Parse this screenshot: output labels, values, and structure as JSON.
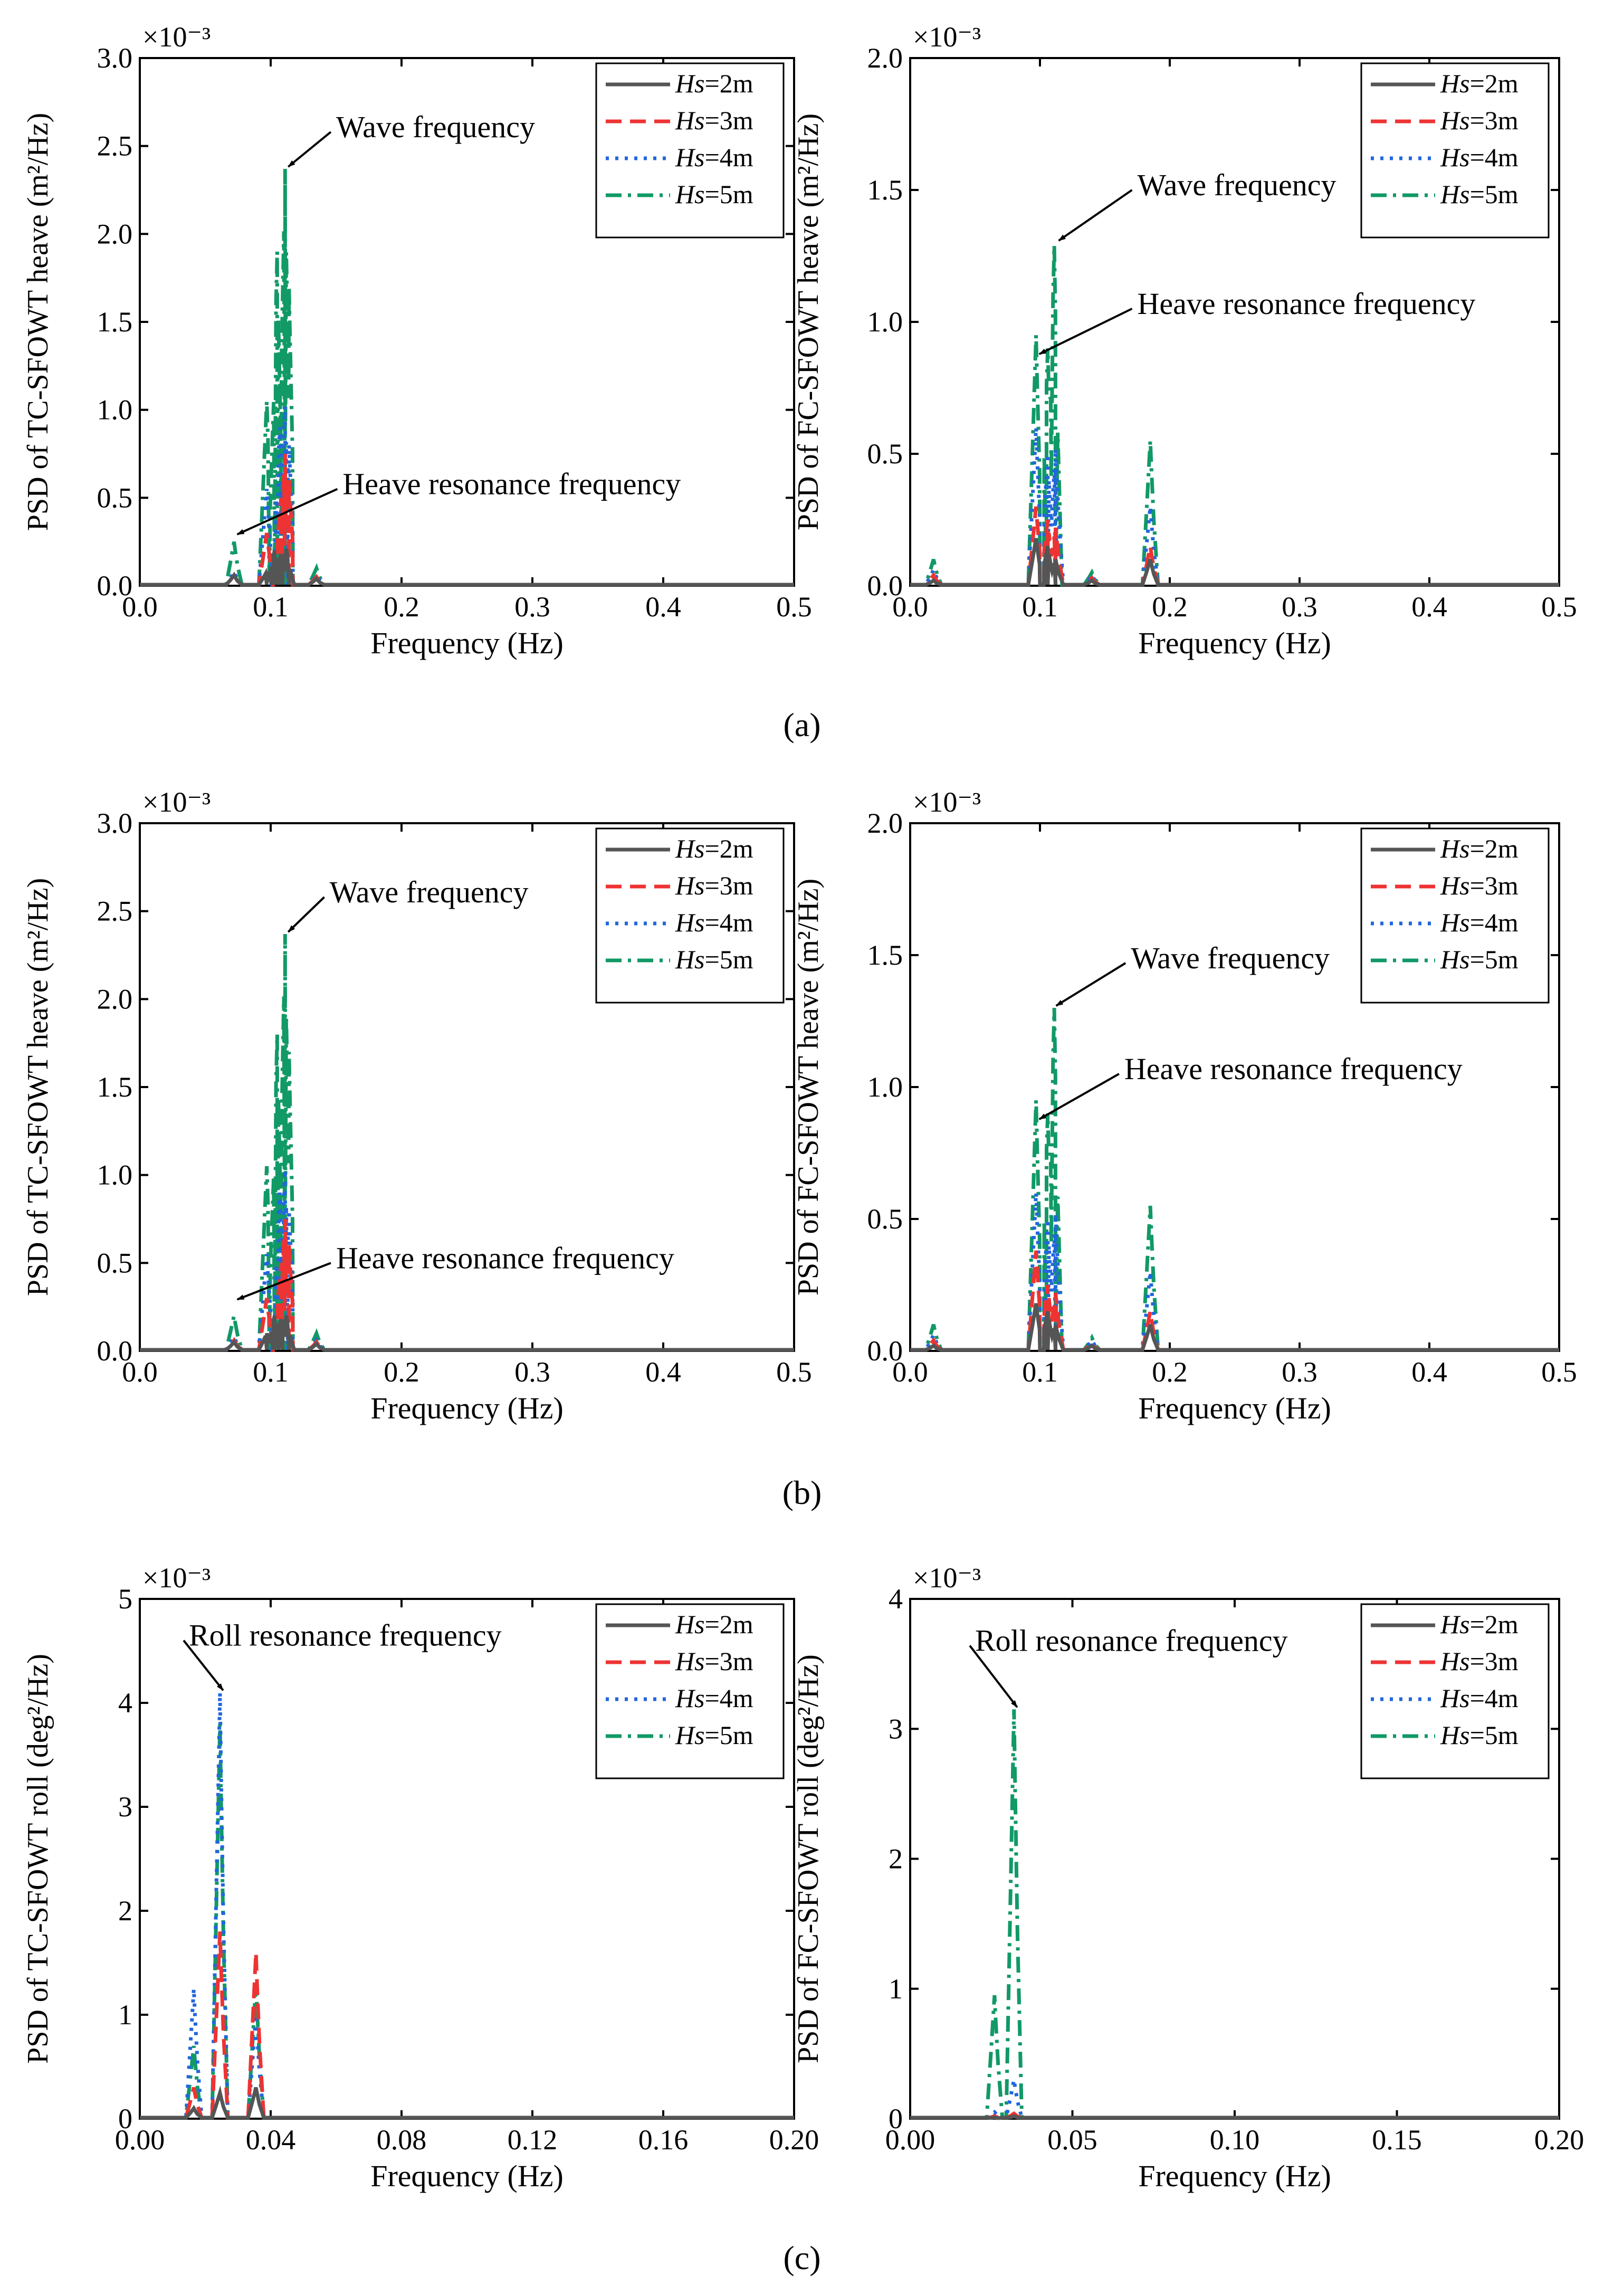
{
  "figure": {
    "captions": [
      "(a)",
      "(b)",
      "(c)"
    ],
    "legend_hs_symbol": "Hs"
  },
  "series_styles": [
    {
      "name": "Hs=2m",
      "hs": "Hs",
      "suffix": "=2m",
      "color": "#555555",
      "dash": "solid"
    },
    {
      "name": "Hs=3m",
      "hs": "Hs",
      "suffix": "=3m",
      "color": "#ee3333",
      "dash": "dashed"
    },
    {
      "name": "Hs=4m",
      "hs": "Hs",
      "suffix": "=4m",
      "color": "#2266dd",
      "dash": "dotted"
    },
    {
      "name": "Hs=5m",
      "hs": "Hs",
      "suffix": "=5m",
      "color": "#119966",
      "dash": "dashdot"
    }
  ],
  "chart_data": [
    {
      "id": "a-left",
      "type": "line",
      "row": 0,
      "col": 0,
      "ylabel": "PSD of  TC-SFOWT heave (m²/Hz)",
      "xlabel": "Frequency (Hz)",
      "xlim": [
        0,
        0.5
      ],
      "ylim": [
        0,
        3.0
      ],
      "yscale_label": "×10⁻³",
      "xticks": [
        "0.0",
        "0.1",
        "0.2",
        "0.3",
        "0.4",
        "0.5"
      ],
      "yticks": [
        "0.0",
        "0.5",
        "1.0",
        "1.5",
        "2.0",
        "2.5",
        "3.0"
      ],
      "peaks": [
        [
          [
            0.072,
            0.06
          ],
          [
            0.097,
            0.08
          ],
          [
            0.103,
            0.2
          ],
          [
            0.108,
            0.18
          ],
          [
            0.112,
            0.21
          ],
          [
            0.135,
            0.04
          ]
        ],
        [
          [
            0.072,
            0.06
          ],
          [
            0.097,
            0.3
          ],
          [
            0.108,
            0.5
          ],
          [
            0.111,
            0.75
          ],
          [
            0.114,
            0.6
          ],
          [
            0.135,
            0.05
          ]
        ],
        [
          [
            0.072,
            0.08
          ],
          [
            0.097,
            0.55
          ],
          [
            0.107,
            0.9
          ],
          [
            0.111,
            1.02
          ],
          [
            0.114,
            0.8
          ],
          [
            0.135,
            0.06
          ]
        ],
        [
          [
            0.072,
            0.25
          ],
          [
            0.097,
            1.05
          ],
          [
            0.105,
            1.9
          ],
          [
            0.111,
            2.37
          ],
          [
            0.114,
            1.7
          ],
          [
            0.135,
            0.1
          ]
        ]
      ],
      "annotations": [
        {
          "text": "Wave frequency",
          "tx": 0.15,
          "ty": 2.55,
          "ax": 0.111,
          "ay": 2.37
        },
        {
          "text": "Heave resonance frequency",
          "tx": 0.155,
          "ty": 0.52,
          "ax": 0.072,
          "ay": 0.28
        }
      ]
    },
    {
      "id": "a-right",
      "type": "line",
      "row": 0,
      "col": 1,
      "ylabel": "PSD of FC-SFOWT heave (m²/Hz)",
      "xlabel": "Frequency (Hz)",
      "xlim": [
        0,
        0.5
      ],
      "ylim": [
        0,
        2.0
      ],
      "yscale_label": "×10⁻³",
      "xticks": [
        "0.0",
        "0.1",
        "0.2",
        "0.3",
        "0.4",
        "0.5"
      ],
      "yticks": [
        "0.0",
        "0.5",
        "1.0",
        "1.5",
        "2.0"
      ],
      "peaks": [
        [
          [
            0.018,
            0.02
          ],
          [
            0.097,
            0.18
          ],
          [
            0.106,
            0.15
          ],
          [
            0.112,
            0.1
          ],
          [
            0.14,
            0.02
          ],
          [
            0.185,
            0.1
          ]
        ],
        [
          [
            0.018,
            0.04
          ],
          [
            0.097,
            0.3
          ],
          [
            0.106,
            0.25
          ],
          [
            0.112,
            0.22
          ],
          [
            0.14,
            0.03
          ],
          [
            0.185,
            0.15
          ]
        ],
        [
          [
            0.018,
            0.06
          ],
          [
            0.097,
            0.6
          ],
          [
            0.106,
            0.5
          ],
          [
            0.112,
            0.52
          ],
          [
            0.14,
            0.04
          ],
          [
            0.185,
            0.3
          ]
        ],
        [
          [
            0.018,
            0.1
          ],
          [
            0.097,
            0.95
          ],
          [
            0.106,
            0.9
          ],
          [
            0.111,
            1.29
          ],
          [
            0.14,
            0.05
          ],
          [
            0.185,
            0.55
          ]
        ]
      ],
      "annotations": [
        {
          "text": "Wave frequency",
          "tx": 0.175,
          "ty": 1.48,
          "ax": 0.112,
          "ay": 1.3
        },
        {
          "text": "Heave resonance frequency",
          "tx": 0.175,
          "ty": 1.03,
          "ax": 0.097,
          "ay": 0.87
        }
      ]
    },
    {
      "id": "b-left",
      "type": "line",
      "row": 1,
      "col": 0,
      "ylabel": "PSD of  TC-SFOWT heave (m²/Hz)",
      "xlabel": "Frequency (Hz)",
      "xlim": [
        0,
        0.5
      ],
      "ylim": [
        0,
        3.0
      ],
      "yscale_label": "×10⁻³",
      "xticks": [
        "0.0",
        "0.1",
        "0.2",
        "0.3",
        "0.4",
        "0.5"
      ],
      "yticks": [
        "0.0",
        "0.5",
        "1.0",
        "1.5",
        "2.0",
        "2.5",
        "3.0"
      ],
      "peaks": [
        [
          [
            0.072,
            0.05
          ],
          [
            0.097,
            0.1
          ],
          [
            0.103,
            0.2
          ],
          [
            0.108,
            0.18
          ],
          [
            0.112,
            0.2
          ],
          [
            0.135,
            0.04
          ]
        ],
        [
          [
            0.072,
            0.06
          ],
          [
            0.097,
            0.3
          ],
          [
            0.108,
            0.5
          ],
          [
            0.111,
            0.75
          ],
          [
            0.114,
            0.6
          ],
          [
            0.135,
            0.05
          ]
        ],
        [
          [
            0.072,
            0.08
          ],
          [
            0.097,
            0.55
          ],
          [
            0.107,
            0.9
          ],
          [
            0.111,
            1.03
          ],
          [
            0.114,
            0.8
          ],
          [
            0.135,
            0.06
          ]
        ],
        [
          [
            0.072,
            0.2
          ],
          [
            0.097,
            1.05
          ],
          [
            0.105,
            1.8
          ],
          [
            0.111,
            2.37
          ],
          [
            0.114,
            1.7
          ],
          [
            0.135,
            0.1
          ]
        ]
      ],
      "annotations": [
        {
          "text": "Wave frequency",
          "tx": 0.145,
          "ty": 2.55,
          "ax": 0.111,
          "ay": 2.37
        },
        {
          "text": "Heave resonance frequency",
          "tx": 0.15,
          "ty": 0.47,
          "ax": 0.072,
          "ay": 0.28
        }
      ]
    },
    {
      "id": "b-right",
      "type": "line",
      "row": 1,
      "col": 1,
      "ylabel": "PSD of FC-SFOWT heave (m²/Hz)",
      "xlabel": "Frequency (Hz)",
      "xlim": [
        0,
        0.5
      ],
      "ylim": [
        0,
        2.0
      ],
      "yscale_label": "×10⁻³",
      "xticks": [
        "0.0",
        "0.1",
        "0.2",
        "0.3",
        "0.4",
        "0.5"
      ],
      "yticks": [
        "0.0",
        "0.5",
        "1.0",
        "1.5",
        "2.0"
      ],
      "peaks": [
        [
          [
            0.018,
            0.02
          ],
          [
            0.097,
            0.18
          ],
          [
            0.106,
            0.15
          ],
          [
            0.112,
            0.1
          ],
          [
            0.14,
            0.02
          ],
          [
            0.185,
            0.1
          ]
        ],
        [
          [
            0.018,
            0.04
          ],
          [
            0.097,
            0.38
          ],
          [
            0.106,
            0.25
          ],
          [
            0.112,
            0.22
          ],
          [
            0.14,
            0.03
          ],
          [
            0.185,
            0.15
          ]
        ],
        [
          [
            0.018,
            0.06
          ],
          [
            0.097,
            0.6
          ],
          [
            0.106,
            0.5
          ],
          [
            0.112,
            0.52
          ],
          [
            0.14,
            0.04
          ],
          [
            0.185,
            0.3
          ]
        ],
        [
          [
            0.018,
            0.1
          ],
          [
            0.097,
            0.95
          ],
          [
            0.106,
            0.9
          ],
          [
            0.111,
            1.3
          ],
          [
            0.14,
            0.05
          ],
          [
            0.185,
            0.55
          ]
        ]
      ],
      "annotations": [
        {
          "text": "Wave frequency",
          "tx": 0.17,
          "ty": 1.45,
          "ax": 0.11,
          "ay": 1.3
        },
        {
          "text": "Heave resonance frequency",
          "tx": 0.165,
          "ty": 1.03,
          "ax": 0.097,
          "ay": 0.87
        }
      ]
    },
    {
      "id": "c-left",
      "type": "line",
      "row": 2,
      "col": 0,
      "ylabel": "PSD of TC-SFOWT roll (deg²/Hz)",
      "xlabel": "Frequency (Hz)",
      "xlim": [
        0,
        0.2
      ],
      "ylim": [
        0,
        5
      ],
      "yscale_label": "×10⁻³",
      "xticks": [
        "0.00",
        "0.04",
        "0.08",
        "0.12",
        "0.16",
        "0.20"
      ],
      "yticks": [
        "0",
        "1",
        "2",
        "3",
        "4",
        "5"
      ],
      "peaks": [
        [
          [
            0.0165,
            0.1
          ],
          [
            0.0245,
            0.25
          ],
          [
            0.0355,
            0.3
          ]
        ],
        [
          [
            0.0165,
            0.3
          ],
          [
            0.0245,
            1.8
          ],
          [
            0.0355,
            1.6
          ]
        ],
        [
          [
            0.0165,
            1.25
          ],
          [
            0.0245,
            4.1
          ],
          [
            0.0355,
            1.0
          ]
        ],
        [
          [
            0.0165,
            0.7
          ],
          [
            0.0245,
            3.8
          ],
          [
            0.0355,
            1.3
          ]
        ]
      ],
      "annotations": [
        {
          "text": "Roll resonance frequency",
          "tx": 0.015,
          "ty": 4.55,
          "ax": 0.0245,
          "ay": 4.1
        }
      ]
    },
    {
      "id": "c-right",
      "type": "line",
      "row": 2,
      "col": 1,
      "ylabel": "PSD of FC-SFOWT roll (deg²/Hz)",
      "xlabel": "Frequency (Hz)",
      "xlim": [
        0,
        0.2
      ],
      "ylim": [
        0,
        4
      ],
      "yscale_label": "×10⁻³",
      "xticks": [
        "0.00",
        "0.05",
        "0.10",
        "0.15",
        "0.20"
      ],
      "yticks": [
        "0",
        "1",
        "2",
        "3",
        "4"
      ],
      "peaks": [
        [
          [
            0.026,
            0.01
          ],
          [
            0.032,
            0.02
          ]
        ],
        [
          [
            0.026,
            0.02
          ],
          [
            0.032,
            0.04
          ]
        ],
        [
          [
            0.026,
            0.05
          ],
          [
            0.032,
            0.3
          ]
        ],
        [
          [
            0.026,
            0.95
          ],
          [
            0.032,
            3.15
          ]
        ]
      ],
      "annotations": [
        {
          "text": "Roll resonance frequency",
          "tx": 0.02,
          "ty": 3.6,
          "ax": 0.032,
          "ay": 3.15
        }
      ]
    }
  ]
}
